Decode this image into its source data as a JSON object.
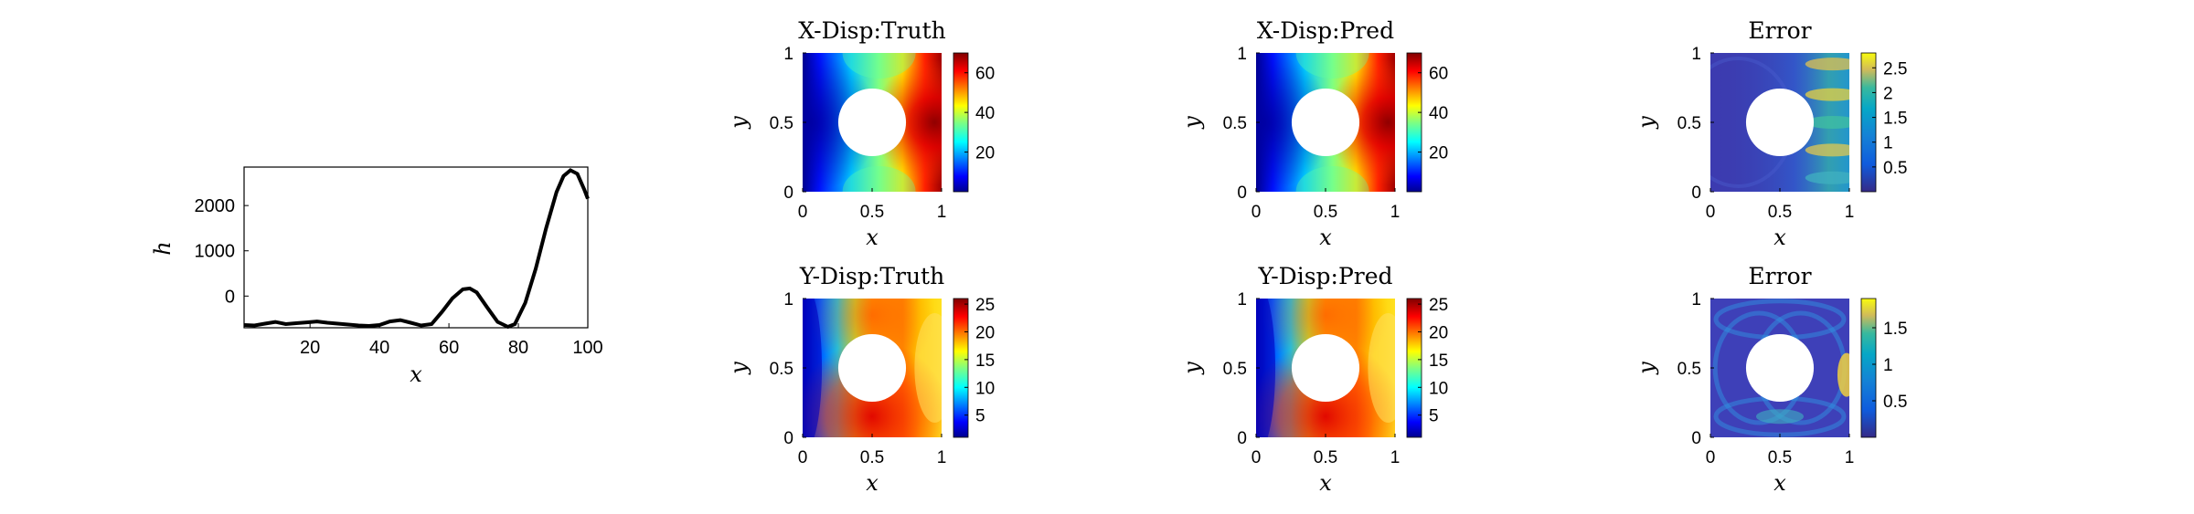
{
  "chart_data": [
    {
      "type": "line",
      "title": "",
      "xlabel": "x",
      "ylabel": "h",
      "xlim": [
        1,
        100
      ],
      "ylim": [
        -700,
        2850
      ],
      "x_ticks": [
        "20",
        "40",
        "60",
        "80",
        "100"
      ],
      "y_ticks": [
        "0",
        "1000",
        "2000"
      ],
      "grid": false,
      "series": [
        {
          "color": "#000000",
          "x": [
            1,
            4,
            7,
            10,
            13,
            16,
            19,
            22,
            25,
            28,
            31,
            34,
            37,
            40,
            43,
            46,
            49,
            52,
            55,
            58,
            61,
            64,
            66,
            68,
            71,
            74,
            77,
            79,
            82,
            85,
            88,
            91,
            93,
            95,
            97,
            99,
            100
          ],
          "y": [
            -640,
            -650,
            -610,
            -570,
            -620,
            -600,
            -580,
            -560,
            -590,
            -610,
            -630,
            -650,
            -660,
            -640,
            -560,
            -530,
            -590,
            -650,
            -620,
            -350,
            -50,
            150,
            170,
            80,
            -250,
            -570,
            -680,
            -620,
            -150,
            600,
            1500,
            2300,
            2650,
            2780,
            2700,
            2350,
            2150
          ]
        }
      ]
    },
    {
      "type": "heatmap",
      "title": "X-Disp:Truth",
      "xlabel": "x",
      "ylabel": "y",
      "x_ticks": [
        "0",
        "0.5",
        "1"
      ],
      "y_ticks": [
        "0",
        "0.5",
        "1"
      ],
      "colormap": "jet",
      "colorbar_ticks": [
        "20",
        "40",
        "60"
      ],
      "clim": [
        0,
        70
      ],
      "hole": {
        "center": [
          0.5,
          0.5
        ],
        "radius": 0.25
      }
    },
    {
      "type": "heatmap",
      "title": "X-Disp:Pred",
      "xlabel": "x",
      "ylabel": "y",
      "x_ticks": [
        "0",
        "0.5",
        "1"
      ],
      "y_ticks": [
        "0",
        "0.5",
        "1"
      ],
      "colormap": "jet",
      "colorbar_ticks": [
        "20",
        "40",
        "60"
      ],
      "clim": [
        0,
        70
      ],
      "hole": {
        "center": [
          0.5,
          0.5
        ],
        "radius": 0.25
      }
    },
    {
      "type": "heatmap",
      "title": "Error",
      "xlabel": "x",
      "ylabel": "y",
      "x_ticks": [
        "0",
        "0.5",
        "1"
      ],
      "y_ticks": [
        "0",
        "0.5",
        "1"
      ],
      "colormap": "parula",
      "colorbar_ticks": [
        "0.5",
        "1",
        "1.5",
        "2",
        "2.5"
      ],
      "clim": [
        0,
        2.8
      ],
      "hole": {
        "center": [
          0.5,
          0.5
        ],
        "radius": 0.25
      }
    },
    {
      "type": "heatmap",
      "title": "Y-Disp:Truth",
      "xlabel": "x",
      "ylabel": "y",
      "x_ticks": [
        "0",
        "0.5",
        "1"
      ],
      "y_ticks": [
        "0",
        "0.5",
        "1"
      ],
      "colormap": "jet",
      "colorbar_ticks": [
        "5",
        "10",
        "15",
        "20",
        "25"
      ],
      "clim": [
        1,
        26
      ],
      "hole": {
        "center": [
          0.5,
          0.5
        ],
        "radius": 0.25
      }
    },
    {
      "type": "heatmap",
      "title": "Y-Disp:Pred",
      "xlabel": "x",
      "ylabel": "y",
      "x_ticks": [
        "0",
        "0.5",
        "1"
      ],
      "y_ticks": [
        "0",
        "0.5",
        "1"
      ],
      "colormap": "jet",
      "colorbar_ticks": [
        "5",
        "10",
        "15",
        "20",
        "25"
      ],
      "clim": [
        1,
        26
      ],
      "hole": {
        "center": [
          0.5,
          0.5
        ],
        "radius": 0.25
      }
    },
    {
      "type": "heatmap",
      "title": "Error",
      "xlabel": "x",
      "ylabel": "y",
      "x_ticks": [
        "0",
        "0.5",
        "1"
      ],
      "y_ticks": [
        "0",
        "0.5",
        "1"
      ],
      "colormap": "parula",
      "colorbar_ticks": [
        "0.5",
        "1",
        "1.5"
      ],
      "clim": [
        0,
        1.9
      ],
      "hole": {
        "center": [
          0.5,
          0.5
        ],
        "radius": 0.25
      }
    }
  ]
}
